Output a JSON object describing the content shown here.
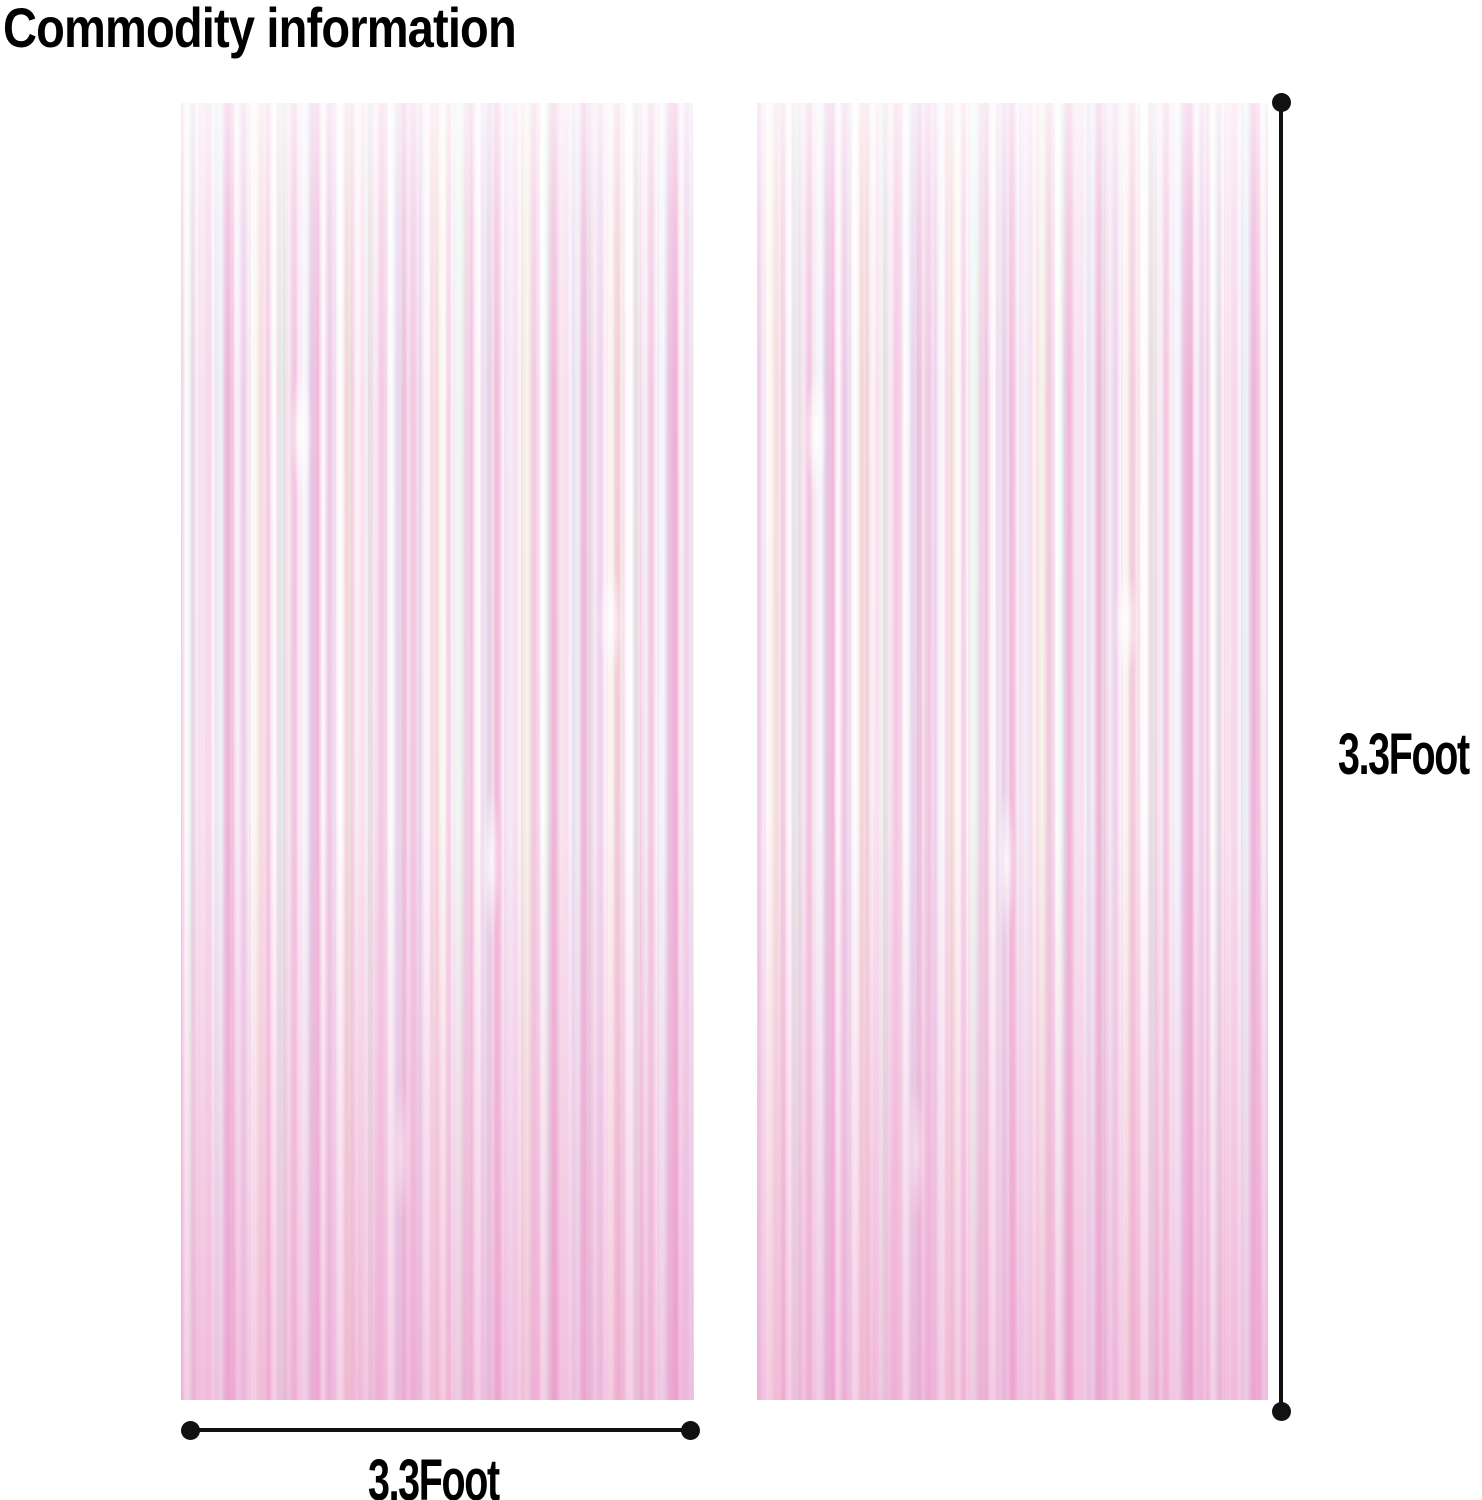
{
  "header": {
    "title": "Commodity information"
  },
  "dimensions": {
    "height": {
      "label": "3.3Foot"
    },
    "width": {
      "label": "3.3Foot"
    }
  },
  "theme": {
    "colors": {
      "background": "#ffffff",
      "text": "#000000",
      "dimension-line": "#111111",
      "curtain-base-top": "#fdf5fa",
      "curtain-base-mid": "#f9e6f1",
      "curtain-base-bottom": "#f2c3de",
      "curtain-pink-light": "#f7d9ec",
      "curtain-pink-medium": "#eeb3d8",
      "curtain-pink-deep": "#e891c6",
      "curtain-white": "#ffffff",
      "curtain-mint": "#dff3e8",
      "curtain-blue": "#e2eef8",
      "curtain-lavender": "#ecdcf2",
      "curtain-cream": "#f5e9d9"
    }
  }
}
